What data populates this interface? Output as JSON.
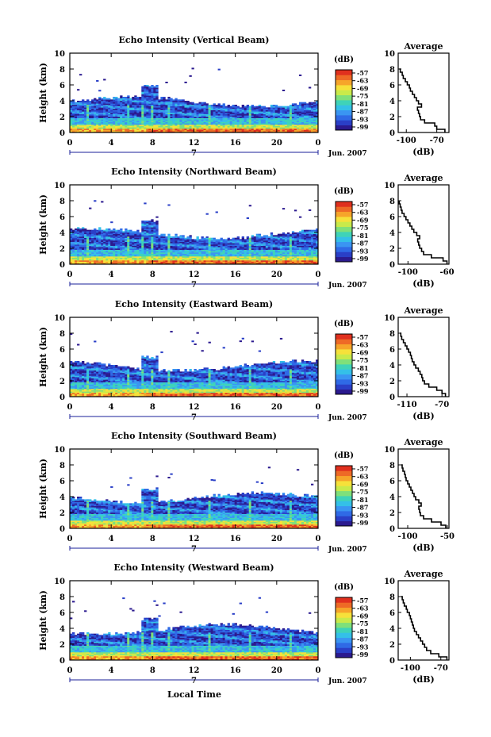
{
  "figure": {
    "bottom_xlabel": "Local Time",
    "x_ticks": [
      "0",
      "4",
      "8",
      "12",
      "16",
      "20",
      "0"
    ],
    "date_label": "Jun. 2007",
    "day_label": "7",
    "y_label": "Height (km)",
    "y_ticks": [
      "0",
      "2",
      "4",
      "6",
      "8",
      "10"
    ],
    "cbar_unit": "(dB)",
    "avg_title": "Average",
    "avg_xlabel": "(dB)"
  },
  "colormap": [
    "#2b1a8f",
    "#2a3fc7",
    "#2f6ae6",
    "#3a95f2",
    "#34c0e8",
    "#3fd3b8",
    "#7fe07a",
    "#c9ea4a",
    "#f6e13a",
    "#f6a52a",
    "#ee6a26",
    "#e0301e"
  ],
  "chart_data": [
    {
      "type": "heatmap",
      "title": "Echo Intensity (Vertical Beam)",
      "colorbar_ticks": [
        "-57",
        "-63",
        "-69",
        "-75",
        "-81",
        "-87",
        "-93",
        "-99"
      ],
      "average": {
        "type": "line",
        "x_ticks": [
          "-100",
          "-70"
        ],
        "xlim": [
          -108,
          -58
        ],
        "heights_km": [
          0,
          0.4,
          0.8,
          1.2,
          1.6,
          2.0,
          2.4,
          2.8,
          3.2,
          3.6,
          4.0,
          4.4,
          4.8,
          5.2,
          5.6,
          6.0,
          6.4,
          6.8,
          7.2,
          7.6,
          8.0
        ],
        "db": [
          -62,
          -70,
          -72,
          -82,
          -86,
          -87,
          -88,
          -89,
          -85,
          -88,
          -90,
          -92,
          -94,
          -96,
          -97,
          -99,
          -101,
          -103,
          -104,
          -106,
          -107
        ]
      }
    },
    {
      "type": "heatmap",
      "title": "Echo Intensity (Northward Beam)",
      "colorbar_ticks": [
        "-57",
        "-63",
        "-69",
        "-75",
        "-81",
        "-87",
        "-93",
        "-99"
      ],
      "average": {
        "type": "line",
        "x_ticks": [
          "-100",
          "-60"
        ],
        "xlim": [
          -110,
          -58
        ],
        "heights_km": [
          0,
          0.4,
          0.8,
          1.2,
          1.6,
          2.0,
          2.4,
          2.8,
          3.2,
          3.6,
          4.0,
          4.4,
          4.8,
          5.2,
          5.6,
          6.0,
          6.4,
          6.8,
          7.2,
          7.6,
          8.0
        ],
        "db": [
          -60,
          -64,
          -76,
          -84,
          -86,
          -88,
          -89,
          -90,
          -88,
          -91,
          -94,
          -96,
          -98,
          -100,
          -102,
          -104,
          -106,
          -107,
          -108,
          -109,
          -109
        ]
      }
    },
    {
      "type": "heatmap",
      "title": "Echo Intensity (Eastward Beam)",
      "colorbar_ticks": [
        "-57",
        "-63",
        "-69",
        "-75",
        "-81",
        "-87",
        "-93",
        "-99"
      ],
      "average": {
        "type": "line",
        "x_ticks": [
          "-110",
          "-70"
        ],
        "xlim": [
          -120,
          -62
        ],
        "heights_km": [
          0,
          0.4,
          0.8,
          1.2,
          1.6,
          2.0,
          2.4,
          2.8,
          3.2,
          3.6,
          4.0,
          4.4,
          4.8,
          5.2,
          5.6,
          6.0,
          6.4,
          6.8,
          7.2,
          7.6,
          8.0
        ],
        "db": [
          -66,
          -70,
          -76,
          -85,
          -90,
          -92,
          -93,
          -95,
          -97,
          -100,
          -102,
          -104,
          -105,
          -106,
          -108,
          -110,
          -112,
          -114,
          -116,
          -117,
          -118
        ]
      }
    },
    {
      "type": "heatmap",
      "title": "Echo Intensity (Southward Beam)",
      "colorbar_ticks": [
        "-57",
        "-63",
        "-69",
        "-75",
        "-81",
        "-87",
        "-93",
        "-99"
      ],
      "average": {
        "type": "line",
        "x_ticks": [
          "-100",
          "-50"
        ],
        "xlim": [
          -112,
          -48
        ],
        "heights_km": [
          0,
          0.4,
          0.8,
          1.2,
          1.6,
          2.0,
          2.4,
          2.8,
          3.2,
          3.6,
          4.0,
          4.4,
          4.8,
          5.2,
          5.6,
          6.0,
          6.4,
          6.8,
          7.2,
          7.6,
          8.0
        ],
        "db": [
          -52,
          -58,
          -70,
          -80,
          -84,
          -85,
          -86,
          -83,
          -86,
          -90,
          -92,
          -94,
          -96,
          -98,
          -100,
          -102,
          -103,
          -104,
          -106,
          -107,
          -108
        ]
      }
    },
    {
      "type": "heatmap",
      "title": "Echo Intensity (Westward Beam)",
      "colorbar_ticks": [
        "-57",
        "-63",
        "-69",
        "-75",
        "-81",
        "-87",
        "-93",
        "-99"
      ],
      "average": {
        "type": "line",
        "x_ticks": [
          "-100",
          "-70"
        ],
        "xlim": [
          -112,
          -62
        ],
        "heights_km": [
          0,
          0.4,
          0.8,
          1.2,
          1.6,
          2.0,
          2.4,
          2.8,
          3.2,
          3.6,
          4.0,
          4.4,
          4.8,
          5.2,
          5.6,
          6.0,
          6.4,
          6.8,
          7.2,
          7.6,
          8.0
        ],
        "db": [
          -64,
          -72,
          -80,
          -84,
          -86,
          -88,
          -90,
          -92,
          -94,
          -96,
          -97,
          -98,
          -99,
          -100,
          -101,
          -103,
          -104,
          -106,
          -107,
          -108,
          -109
        ]
      }
    }
  ]
}
